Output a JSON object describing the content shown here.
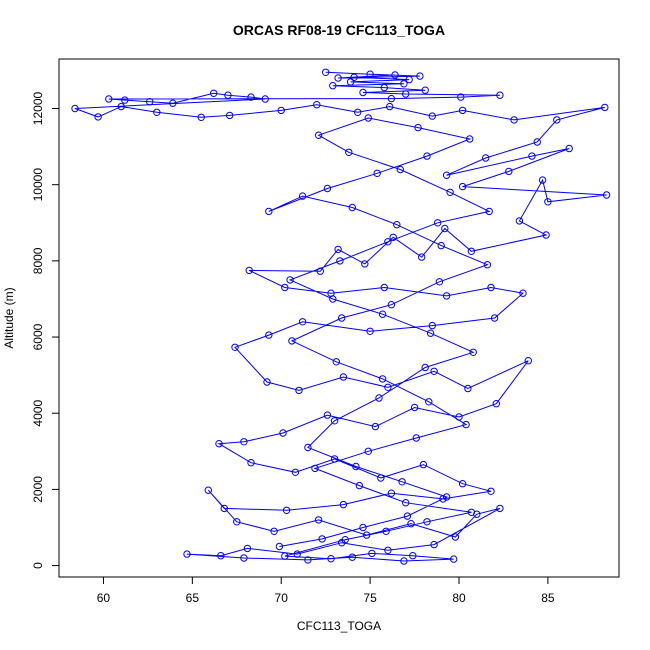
{
  "chart_data": {
    "type": "scatter",
    "title": "ORCAS RF08-19 CFC113_TOGA",
    "xlabel": "CFC113_TOGA",
    "ylabel": "Altitude (m)",
    "xlim": [
      57.5,
      89.0
    ],
    "ylim": [
      -300,
      13300
    ],
    "x_ticks": [
      60,
      65,
      70,
      75,
      80,
      85
    ],
    "y_ticks": [
      0,
      2000,
      4000,
      6000,
      8000,
      10000,
      12000
    ],
    "x_tick_labels": [
      "60",
      "65",
      "70",
      "75",
      "80",
      "85"
    ],
    "y_tick_labels": [
      "0",
      "2000",
      "4000",
      "6000",
      "8000",
      "10000",
      "12000"
    ],
    "grid": false,
    "series": [
      {
        "color": "#0000ff",
        "marker": "open-circle",
        "line": true,
        "points": [
          [
            72.5,
            12950
          ],
          [
            75.0,
            12900
          ],
          [
            77.8,
            12850
          ],
          [
            73.2,
            12800
          ],
          [
            76.4,
            12880
          ],
          [
            74.1,
            12820
          ],
          [
            77.2,
            12760
          ],
          [
            73.9,
            12700
          ],
          [
            76.9,
            12650
          ],
          [
            72.9,
            12600
          ],
          [
            75.8,
            12550
          ],
          [
            78.1,
            12480
          ],
          [
            74.6,
            12420
          ],
          [
            77.0,
            12380
          ],
          [
            82.3,
            12350
          ],
          [
            80.1,
            12300
          ],
          [
            76.2,
            12260
          ],
          [
            60.3,
            12250
          ],
          [
            61.2,
            12220
          ],
          [
            62.6,
            12180
          ],
          [
            63.9,
            12140
          ],
          [
            66.2,
            12400
          ],
          [
            67.0,
            12350
          ],
          [
            68.3,
            12300
          ],
          [
            69.1,
            12250
          ],
          [
            58.4,
            12000
          ],
          [
            59.7,
            11780
          ],
          [
            61.0,
            12050
          ],
          [
            63.0,
            11900
          ],
          [
            65.5,
            11770
          ],
          [
            67.1,
            11820
          ],
          [
            70.0,
            11950
          ],
          [
            72.0,
            12100
          ],
          [
            74.3,
            11900
          ],
          [
            76.1,
            12050
          ],
          [
            78.5,
            11800
          ],
          [
            80.2,
            11950
          ],
          [
            83.1,
            11700
          ],
          [
            88.2,
            12030
          ],
          [
            85.5,
            11700
          ],
          [
            84.4,
            11120
          ],
          [
            81.5,
            10700
          ],
          [
            79.3,
            10250
          ],
          [
            84.1,
            10750
          ],
          [
            86.2,
            10950
          ],
          [
            82.8,
            10350
          ],
          [
            80.2,
            9950
          ],
          [
            88.3,
            9730
          ],
          [
            85.0,
            9550
          ],
          [
            84.7,
            10120
          ],
          [
            83.4,
            9050
          ],
          [
            84.9,
            8680
          ],
          [
            80.7,
            8250
          ],
          [
            79.2,
            8850
          ],
          [
            77.9,
            8100
          ],
          [
            76.3,
            8620
          ],
          [
            74.7,
            7920
          ],
          [
            73.2,
            8300
          ],
          [
            72.2,
            7730
          ],
          [
            68.2,
            7750
          ],
          [
            70.2,
            7300
          ],
          [
            72.8,
            7150
          ],
          [
            75.8,
            7300
          ],
          [
            79.3,
            7080
          ],
          [
            81.8,
            7300
          ],
          [
            83.6,
            7150
          ],
          [
            82.0,
            6500
          ],
          [
            78.5,
            6300
          ],
          [
            75.0,
            6150
          ],
          [
            71.2,
            6400
          ],
          [
            69.3,
            6050
          ],
          [
            67.4,
            5730
          ],
          [
            69.2,
            4820
          ],
          [
            71.0,
            4600
          ],
          [
            73.5,
            4950
          ],
          [
            76.0,
            4680
          ],
          [
            78.6,
            5100
          ],
          [
            80.5,
            4650
          ],
          [
            83.9,
            5380
          ],
          [
            82.1,
            4250
          ],
          [
            80.0,
            3900
          ],
          [
            77.5,
            4150
          ],
          [
            75.3,
            3650
          ],
          [
            72.6,
            3950
          ],
          [
            70.1,
            3480
          ],
          [
            67.9,
            3250
          ],
          [
            66.5,
            3200
          ],
          [
            68.3,
            2700
          ],
          [
            70.8,
            2450
          ],
          [
            73.0,
            2800
          ],
          [
            75.6,
            2300
          ],
          [
            78.0,
            2650
          ],
          [
            80.2,
            2150
          ],
          [
            81.8,
            1950
          ],
          [
            79.1,
            1750
          ],
          [
            76.2,
            1900
          ],
          [
            73.5,
            1600
          ],
          [
            70.3,
            1450
          ],
          [
            66.8,
            1500
          ],
          [
            65.9,
            1980
          ],
          [
            67.5,
            1150
          ],
          [
            69.6,
            900
          ],
          [
            72.1,
            1200
          ],
          [
            74.8,
            800
          ],
          [
            77.3,
            1100
          ],
          [
            79.8,
            750
          ],
          [
            81.0,
            1350
          ],
          [
            82.3,
            1500
          ],
          [
            78.6,
            550
          ],
          [
            76.0,
            400
          ],
          [
            73.4,
            600
          ],
          [
            70.9,
            300
          ],
          [
            68.1,
            450
          ],
          [
            66.6,
            260
          ],
          [
            64.7,
            300
          ],
          [
            67.9,
            200
          ],
          [
            71.5,
            150
          ],
          [
            74.0,
            220
          ],
          [
            76.9,
            120
          ],
          [
            79.7,
            170
          ],
          [
            77.4,
            260
          ],
          [
            75.1,
            320
          ],
          [
            72.8,
            180
          ],
          [
            70.2,
            250
          ],
          [
            73.6,
            680
          ],
          [
            75.9,
            900
          ],
          [
            78.2,
            1150
          ],
          [
            80.7,
            1400
          ],
          [
            77.0,
            1650
          ],
          [
            74.4,
            2100
          ],
          [
            71.9,
            2550
          ],
          [
            74.9,
            3000
          ],
          [
            77.6,
            3350
          ],
          [
            80.4,
            3700
          ],
          [
            78.3,
            4300
          ],
          [
            75.7,
            4900
          ],
          [
            73.1,
            5350
          ],
          [
            70.6,
            5900
          ],
          [
            73.4,
            6500
          ],
          [
            76.2,
            6850
          ],
          [
            78.9,
            7450
          ],
          [
            81.6,
            7900
          ],
          [
            79.0,
            8400
          ],
          [
            76.5,
            8950
          ],
          [
            74.0,
            9400
          ],
          [
            71.2,
            9700
          ],
          [
            69.3,
            9300
          ],
          [
            72.6,
            9900
          ],
          [
            75.4,
            10300
          ],
          [
            78.2,
            10750
          ],
          [
            80.6,
            11200
          ],
          [
            77.7,
            11500
          ],
          [
            74.9,
            11750
          ],
          [
            72.1,
            11300
          ],
          [
            73.8,
            10850
          ],
          [
            76.7,
            10400
          ],
          [
            79.5,
            9800
          ],
          [
            81.7,
            9300
          ],
          [
            78.8,
            9000
          ],
          [
            76.0,
            8500
          ],
          [
            73.3,
            8000
          ],
          [
            70.5,
            7500
          ],
          [
            72.9,
            7000
          ],
          [
            75.7,
            6600
          ],
          [
            78.4,
            6100
          ],
          [
            80.8,
            5600
          ],
          [
            78.1,
            5200
          ],
          [
            75.5,
            4400
          ],
          [
            73.0,
            3800
          ],
          [
            71.5,
            3100
          ],
          [
            74.2,
            2600
          ],
          [
            76.8,
            2200
          ],
          [
            79.3,
            1800
          ],
          [
            77.1,
            1300
          ],
          [
            74.6,
            1000
          ],
          [
            72.3,
            700
          ],
          [
            69.9,
            500
          ]
        ]
      }
    ]
  }
}
